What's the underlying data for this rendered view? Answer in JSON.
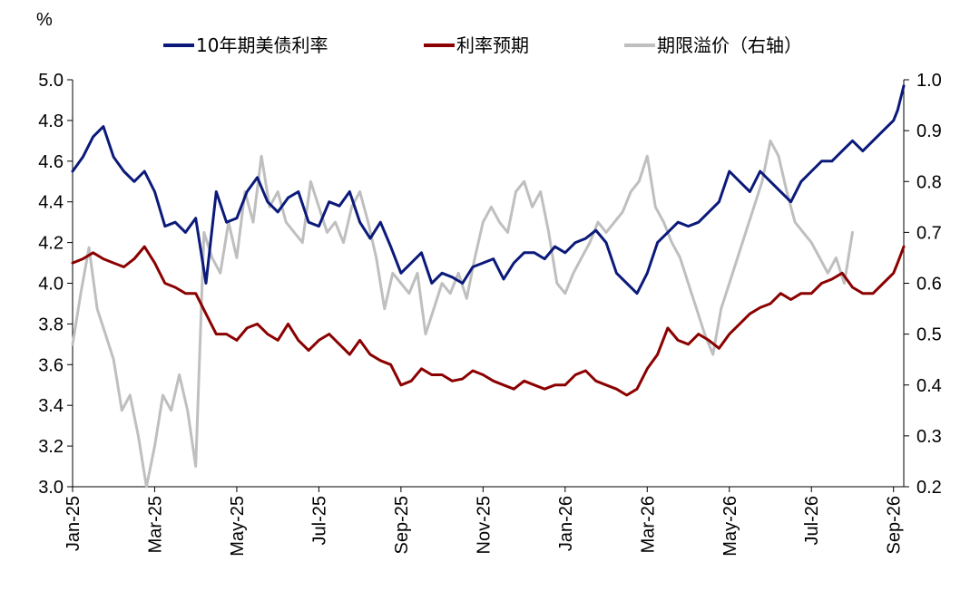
{
  "chart_data": {
    "type": "line",
    "y_left_unit": "%",
    "legend_placement": "top",
    "grid": false,
    "y_left": {
      "min": 3.0,
      "max": 5.0,
      "ticks": [
        "3.0",
        "3.2",
        "3.4",
        "3.6",
        "3.8",
        "4.0",
        "4.2",
        "4.4",
        "4.6",
        "4.8",
        "5.0"
      ]
    },
    "y_right": {
      "min": 0.2,
      "max": 1.0,
      "ticks": [
        "0.2",
        "0.3",
        "0.4",
        "0.5",
        "0.6",
        "0.7",
        "0.8",
        "0.9",
        "1.0"
      ]
    },
    "x_ticks": [
      "Jan-25",
      "Mar-25",
      "May-25",
      "Jul-25",
      "Sep-25",
      "Nov-25",
      "Jan-26",
      "Mar-26",
      "May-26",
      "Jul-26",
      "Sep-26"
    ],
    "x_ticks_month_index": [
      0,
      2,
      4,
      6,
      8,
      10,
      12,
      14,
      16,
      18,
      20
    ],
    "x_range_month_index": [
      0,
      20.25
    ],
    "series": [
      {
        "name": "10年期美债利率",
        "axis": "left",
        "color": "#0b1a7a",
        "x_month_index": [
          0,
          0.25,
          0.5,
          0.75,
          1,
          1.25,
          1.5,
          1.75,
          2,
          2.25,
          2.5,
          2.75,
          3,
          3.25,
          3.5,
          3.75,
          4,
          4.25,
          4.5,
          4.75,
          5,
          5.25,
          5.5,
          5.75,
          6,
          6.25,
          6.5,
          6.75,
          7,
          7.25,
          7.5,
          7.75,
          8,
          8.25,
          8.5,
          8.75,
          9,
          9.25,
          9.5,
          9.75,
          10,
          10.25,
          10.5,
          10.75,
          11,
          11.25,
          11.5,
          11.75,
          12,
          12.25,
          12.5,
          12.75,
          13,
          13.25,
          13.5,
          13.75,
          14,
          14.25,
          14.5,
          14.75,
          15,
          15.25,
          15.5,
          15.75,
          16,
          16.25,
          16.5,
          16.75,
          17,
          17.25,
          17.5,
          17.75,
          18,
          18.25,
          18.5,
          18.75,
          19,
          19.25,
          19.5,
          19.75,
          20,
          20.1,
          20.25
        ],
        "values": [
          4.55,
          4.62,
          4.72,
          4.77,
          4.62,
          4.55,
          4.5,
          4.55,
          4.45,
          4.28,
          4.3,
          4.25,
          4.32,
          4.0,
          4.45,
          4.3,
          4.32,
          4.45,
          4.52,
          4.4,
          4.35,
          4.42,
          4.45,
          4.3,
          4.28,
          4.4,
          4.38,
          4.45,
          4.3,
          4.22,
          4.3,
          4.18,
          4.05,
          4.1,
          4.15,
          4.0,
          4.05,
          4.03,
          4.0,
          4.08,
          4.1,
          4.12,
          4.02,
          4.1,
          4.15,
          4.15,
          4.12,
          4.18,
          4.15,
          4.2,
          4.22,
          4.26,
          4.2,
          4.05,
          4.0,
          3.95,
          4.05,
          4.2,
          4.25,
          4.3,
          4.28,
          4.3,
          4.35,
          4.4,
          4.55,
          4.5,
          4.45,
          4.55,
          4.5,
          4.45,
          4.4,
          4.5,
          4.55,
          4.6,
          4.6,
          4.65,
          4.7,
          4.65,
          4.7,
          4.75,
          4.8,
          4.85,
          4.97
        ]
      },
      {
        "name": "利率预期",
        "axis": "left",
        "color": "#8b0000",
        "x_month_index": [
          0,
          0.25,
          0.5,
          0.75,
          1,
          1.25,
          1.5,
          1.75,
          2,
          2.25,
          2.5,
          2.75,
          3,
          3.25,
          3.5,
          3.75,
          4,
          4.25,
          4.5,
          4.75,
          5,
          5.25,
          5.5,
          5.75,
          6,
          6.25,
          6.5,
          6.75,
          7,
          7.25,
          7.5,
          7.75,
          8,
          8.25,
          8.5,
          8.75,
          9,
          9.25,
          9.5,
          9.75,
          10,
          10.25,
          10.5,
          10.75,
          11,
          11.25,
          11.5,
          11.75,
          12,
          12.25,
          12.5,
          12.75,
          13,
          13.25,
          13.5,
          13.75,
          14,
          14.25,
          14.5,
          14.75,
          15,
          15.25,
          15.5,
          15.75,
          16,
          16.25,
          16.5,
          16.75,
          17,
          17.25,
          17.5,
          17.75,
          18,
          18.25,
          18.5,
          18.75,
          19,
          19.25,
          19.5,
          19.75,
          20,
          20.1,
          20.25
        ],
        "values": [
          4.1,
          4.12,
          4.15,
          4.12,
          4.1,
          4.08,
          4.12,
          4.18,
          4.1,
          4.0,
          3.98,
          3.95,
          3.95,
          3.85,
          3.75,
          3.75,
          3.72,
          3.78,
          3.8,
          3.75,
          3.72,
          3.8,
          3.72,
          3.67,
          3.72,
          3.75,
          3.7,
          3.65,
          3.72,
          3.65,
          3.62,
          3.6,
          3.5,
          3.52,
          3.58,
          3.55,
          3.55,
          3.52,
          3.53,
          3.57,
          3.55,
          3.52,
          3.5,
          3.48,
          3.52,
          3.5,
          3.48,
          3.5,
          3.5,
          3.55,
          3.57,
          3.52,
          3.5,
          3.48,
          3.45,
          3.48,
          3.58,
          3.65,
          3.78,
          3.72,
          3.7,
          3.75,
          3.72,
          3.68,
          3.75,
          3.8,
          3.85,
          3.88,
          3.9,
          3.95,
          3.92,
          3.95,
          3.95,
          4.0,
          4.02,
          4.05,
          3.98,
          3.95,
          3.95,
          4.0,
          4.05,
          4.1,
          4.18
        ]
      },
      {
        "name": "期限溢价（右轴）",
        "axis": "right",
        "color": "#bfbfbf",
        "x_month_index": [
          0,
          0.2,
          0.4,
          0.6,
          0.8,
          1,
          1.2,
          1.4,
          1.6,
          1.8,
          2,
          2.2,
          2.4,
          2.6,
          2.8,
          3,
          3.2,
          3.4,
          3.6,
          3.8,
          4,
          4.2,
          4.4,
          4.6,
          4.8,
          5,
          5.2,
          5.4,
          5.6,
          5.8,
          6,
          6.2,
          6.4,
          6.6,
          6.8,
          7,
          7.2,
          7.4,
          7.6,
          7.8,
          8,
          8.2,
          8.4,
          8.6,
          8.8,
          9,
          9.2,
          9.4,
          9.6,
          9.8,
          10,
          10.2,
          10.4,
          10.6,
          10.8,
          11,
          11.2,
          11.4,
          11.6,
          11.8,
          12,
          12.2,
          12.4,
          12.6,
          12.8,
          13,
          13.2,
          13.4,
          13.6,
          13.8,
          14,
          14.2,
          14.4,
          14.6,
          14.8,
          15,
          15.2,
          15.4,
          15.6,
          15.8,
          16,
          16.2,
          16.4,
          16.6,
          16.8,
          17,
          17.2,
          17.4,
          17.6,
          17.8,
          18,
          18.2,
          18.4,
          18.6,
          18.8,
          19,
          19.2,
          19.4,
          19.6,
          19.8,
          20,
          20.1,
          20.25
        ],
        "values": [
          0.48,
          0.58,
          0.67,
          0.55,
          0.5,
          0.45,
          0.35,
          0.38,
          0.3,
          0.2,
          0.28,
          0.38,
          0.35,
          0.42,
          0.35,
          0.24,
          0.7,
          0.65,
          0.62,
          0.72,
          0.65,
          0.78,
          0.72,
          0.85,
          0.75,
          0.78,
          0.72,
          0.7,
          0.68,
          0.8,
          0.75,
          0.7,
          0.72,
          0.68,
          0.75,
          0.78,
          0.72,
          0.65,
          0.55,
          0.62,
          0.6,
          0.58,
          0.62,
          0.5,
          0.55,
          0.6,
          0.58,
          0.62,
          0.57,
          0.65,
          0.72,
          0.75,
          0.72,
          0.7,
          0.78,
          0.8,
          0.75,
          0.78,
          0.7,
          0.6,
          0.58,
          0.62,
          0.65,
          0.68,
          0.72,
          0.7,
          0.72,
          0.74,
          0.78,
          0.8,
          0.85,
          0.75,
          0.72,
          0.68,
          0.65,
          0.6,
          0.55,
          0.5,
          0.46,
          0.55,
          0.6,
          0.65,
          0.7,
          0.75,
          0.8,
          0.88,
          0.85,
          0.78,
          0.72,
          0.7,
          0.68,
          0.65,
          0.62,
          0.65,
          0.6,
          0.7
        ]
      }
    ]
  }
}
